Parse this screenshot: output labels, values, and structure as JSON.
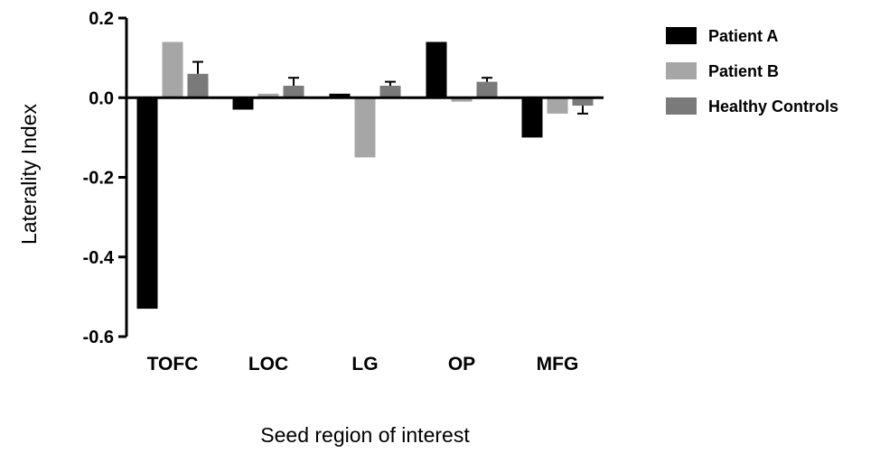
{
  "chart_data": {
    "type": "bar",
    "categories": [
      "TOFC",
      "LOC",
      "LG",
      "OP",
      "MFG"
    ],
    "series": [
      {
        "name": "Patient A",
        "color": "#000000",
        "values": [
          -0.53,
          -0.03,
          0.01,
          0.14,
          -0.1
        ]
      },
      {
        "name": "Patient B",
        "color": "#a6a6a6",
        "values": [
          0.14,
          0.01,
          -0.15,
          -0.01,
          -0.04
        ]
      },
      {
        "name": "Healthy Controls",
        "color": "#7a7a7a",
        "values": [
          0.06,
          0.03,
          0.03,
          0.04,
          -0.02
        ],
        "errors": [
          0.03,
          0.02,
          0.01,
          0.01,
          0.02
        ]
      }
    ],
    "xlabel": "Seed region of interest",
    "ylabel": "Laterality Index",
    "ylim": [
      -0.6,
      0.2
    ],
    "yticks": [
      {
        "value": 0.2,
        "label": "0.2"
      },
      {
        "value": 0.0,
        "label": "0.0"
      },
      {
        "value": -0.2,
        "label": "-0.2"
      },
      {
        "value": -0.4,
        "label": "-0.4"
      },
      {
        "value": -0.6,
        "label": "-0.6"
      }
    ],
    "legend_position": "top-right",
    "grid": false
  }
}
